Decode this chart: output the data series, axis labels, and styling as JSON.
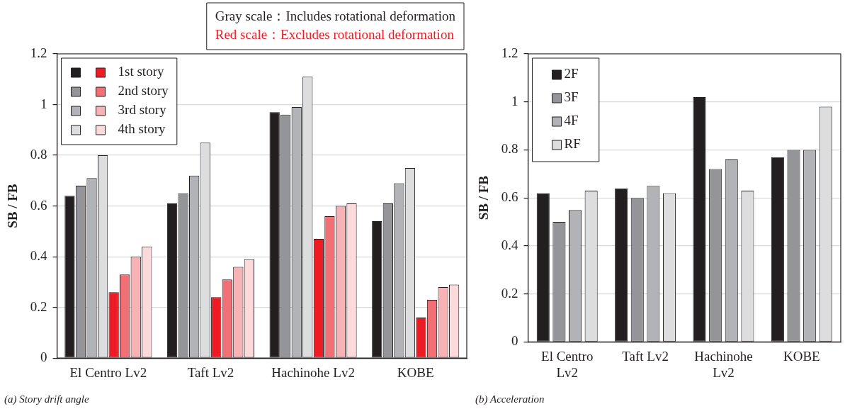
{
  "chart_data": [
    {
      "type": "bar",
      "title": "(a) Story drift angle",
      "ylabel": "SB / FB",
      "categories": [
        "El Centro Lv2",
        "Taft Lv2",
        "Hachinohe Lv2",
        "KOBE"
      ],
      "annotations": [
        "Gray scale：Includes rotational deformation",
        "Red scale：Excludes rotational deformation"
      ],
      "series": [
        {
          "color": "#231f20",
          "values": [
            0.64,
            0.61,
            0.97,
            0.54
          ]
        },
        {
          "color": "#939598",
          "values": [
            0.68,
            0.65,
            0.96,
            0.61
          ]
        },
        {
          "color": "#b1b3b6",
          "values": [
            0.71,
            0.72,
            0.99,
            0.69
          ]
        },
        {
          "color": "#dcddde",
          "values": [
            0.8,
            0.85,
            1.11,
            0.75
          ]
        },
        {
          "name": "1st story",
          "color": "#ed1c24",
          "values": [
            0.26,
            0.24,
            0.47,
            0.16
          ]
        },
        {
          "name": "2nd story",
          "color": "#f07075",
          "values": [
            0.33,
            0.31,
            0.56,
            0.23
          ]
        },
        {
          "name": "3rd story",
          "color": "#f7b2b5",
          "values": [
            0.4,
            0.36,
            0.6,
            0.28
          ]
        },
        {
          "name": "4th story",
          "color": "#fcdadc",
          "values": [
            0.44,
            0.39,
            0.61,
            0.29
          ]
        }
      ],
      "ylim": [
        0,
        1.2
      ],
      "yticks": [
        0,
        0.2,
        0.4,
        0.6,
        0.8,
        1,
        1.2
      ],
      "grid": "y",
      "legend": "top left"
    },
    {
      "type": "bar",
      "title": "(b) Acceleration",
      "ylabel": "SB / FB",
      "categories": [
        "El Centro Lv2",
        "Taft Lv2",
        "Hachinohe Lv2",
        "KOBE"
      ],
      "series": [
        {
          "name": "2F",
          "color": "#231f20",
          "values": [
            0.62,
            0.64,
            1.02,
            0.77
          ]
        },
        {
          "name": "3F",
          "color": "#939598",
          "values": [
            0.5,
            0.6,
            0.72,
            0.8
          ]
        },
        {
          "name": "4F",
          "color": "#b1b3b6",
          "values": [
            0.55,
            0.65,
            0.76,
            0.8
          ]
        },
        {
          "name": "RF",
          "color": "#dcddde",
          "values": [
            0.63,
            0.62,
            0.63,
            0.98
          ]
        }
      ],
      "ylim": [
        0,
        1.2
      ],
      "yticks": [
        0,
        0.2,
        0.4,
        0.6,
        0.8,
        1,
        1.2
      ],
      "grid": "y",
      "legend": "top left"
    }
  ]
}
